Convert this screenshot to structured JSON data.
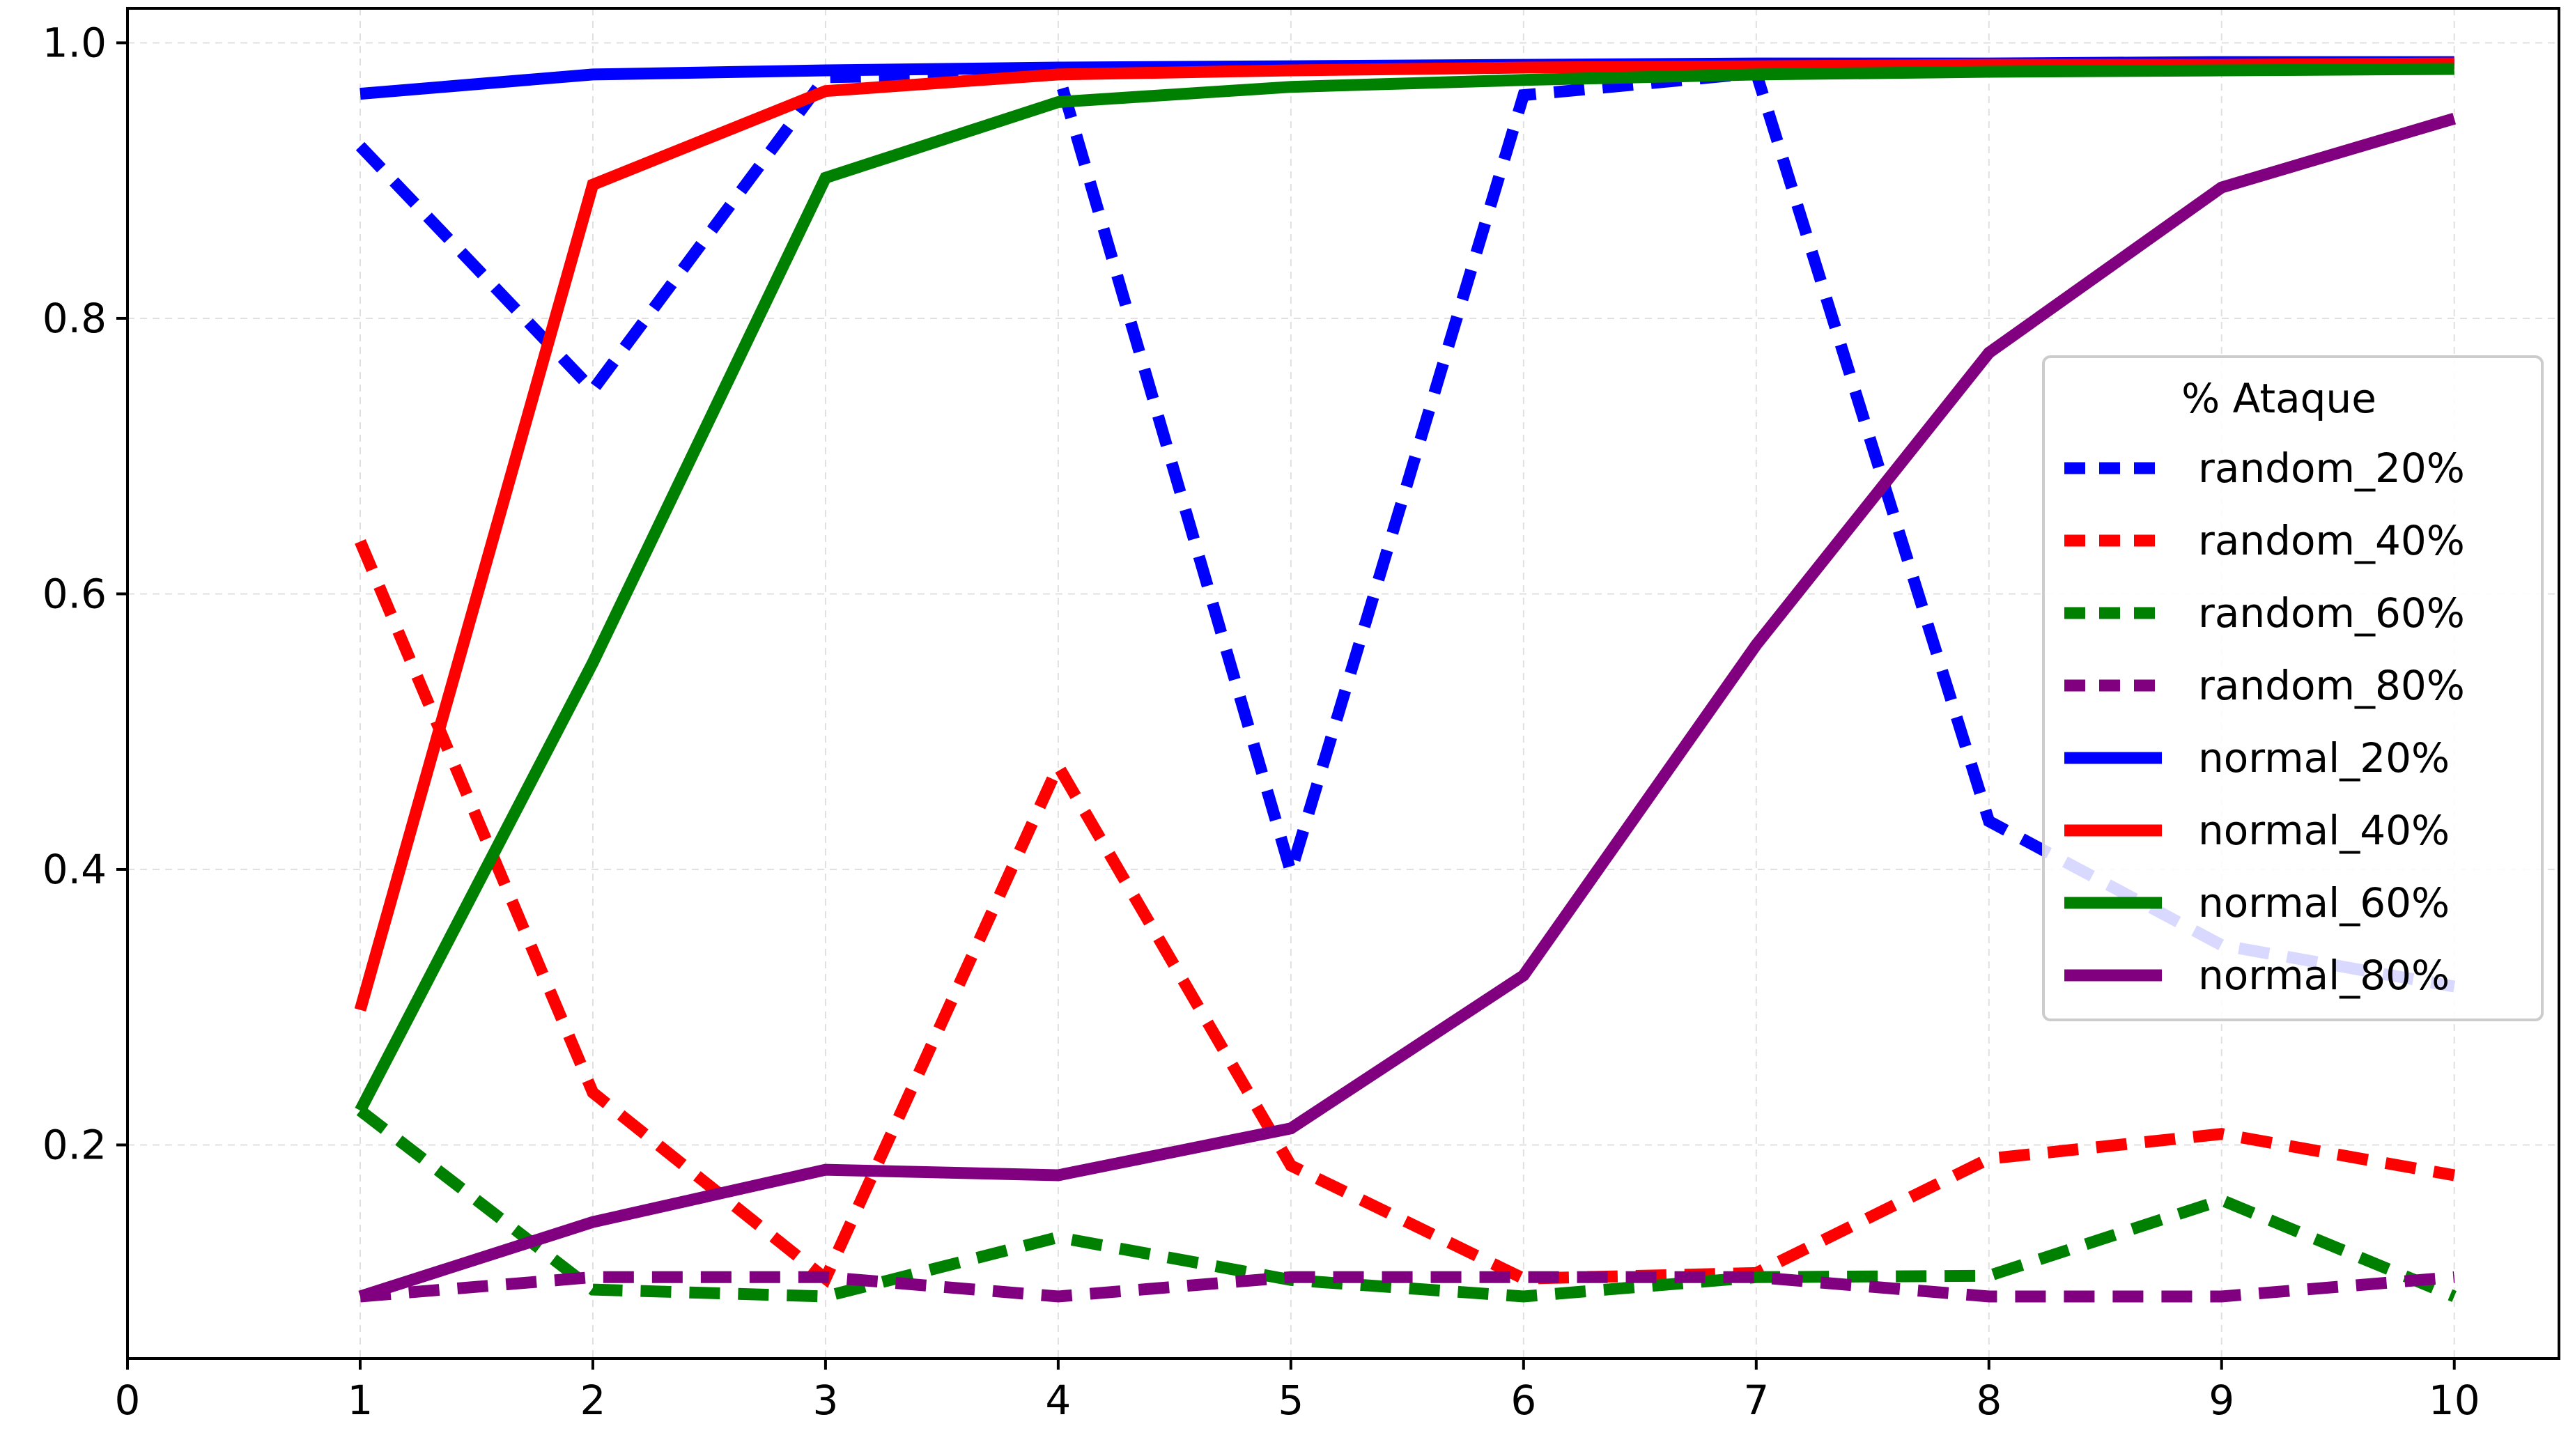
{
  "chart_data": {
    "type": "line",
    "title": "",
    "xlabel": "",
    "ylabel": "",
    "xlim": [
      0,
      10.45
    ],
    "ylim": [
      0.045,
      1.025
    ],
    "xticks": [
      "0",
      "1",
      "2",
      "3",
      "4",
      "5",
      "6",
      "7",
      "8",
      "9",
      "10"
    ],
    "yticks": [
      "0.2",
      "0.4",
      "0.6",
      "0.8",
      "1.0"
    ],
    "grid": true,
    "legend": {
      "title": "% Ataque",
      "placement": "center-right"
    },
    "x": [
      1,
      2,
      3,
      4,
      5,
      6,
      7,
      8,
      9,
      10
    ],
    "series": [
      {
        "name": "random_20%",
        "color": "#0000ff",
        "dashed": true,
        "values": [
          0.925,
          0.748,
          0.975,
          0.978,
          0.398,
          0.962,
          0.978,
          0.435,
          0.345,
          0.315
        ]
      },
      {
        "name": "random_40%",
        "color": "#ff0000",
        "dashed": true,
        "values": [
          0.638,
          0.238,
          0.103,
          0.475,
          0.185,
          0.103,
          0.107,
          0.19,
          0.208,
          0.178
        ]
      },
      {
        "name": "random_60%",
        "color": "#008000",
        "dashed": true,
        "values": [
          0.225,
          0.095,
          0.09,
          0.133,
          0.102,
          0.09,
          0.104,
          0.105,
          0.16,
          0.09
        ]
      },
      {
        "name": "random_80%",
        "color": "#800080",
        "dashed": true,
        "values": [
          0.09,
          0.104,
          0.104,
          0.09,
          0.104,
          0.104,
          0.104,
          0.09,
          0.09,
          0.104
        ]
      },
      {
        "name": "normal_20%",
        "color": "#0000ff",
        "dashed": false,
        "values": [
          0.963,
          0.977,
          0.98,
          0.982,
          0.983,
          0.984,
          0.985,
          0.985,
          0.986,
          0.986
        ]
      },
      {
        "name": "normal_40%",
        "color": "#ff0000",
        "dashed": false,
        "values": [
          0.298,
          0.897,
          0.965,
          0.977,
          0.98,
          0.982,
          0.983,
          0.984,
          0.984,
          0.985
        ]
      },
      {
        "name": "normal_60%",
        "color": "#008000",
        "dashed": false,
        "values": [
          0.225,
          0.55,
          0.902,
          0.957,
          0.968,
          0.973,
          0.977,
          0.979,
          0.98,
          0.981
        ]
      },
      {
        "name": "normal_80%",
        "color": "#800080",
        "dashed": false,
        "values": [
          0.09,
          0.144,
          0.182,
          0.178,
          0.212,
          0.323,
          0.563,
          0.775,
          0.895,
          0.945
        ]
      }
    ]
  }
}
